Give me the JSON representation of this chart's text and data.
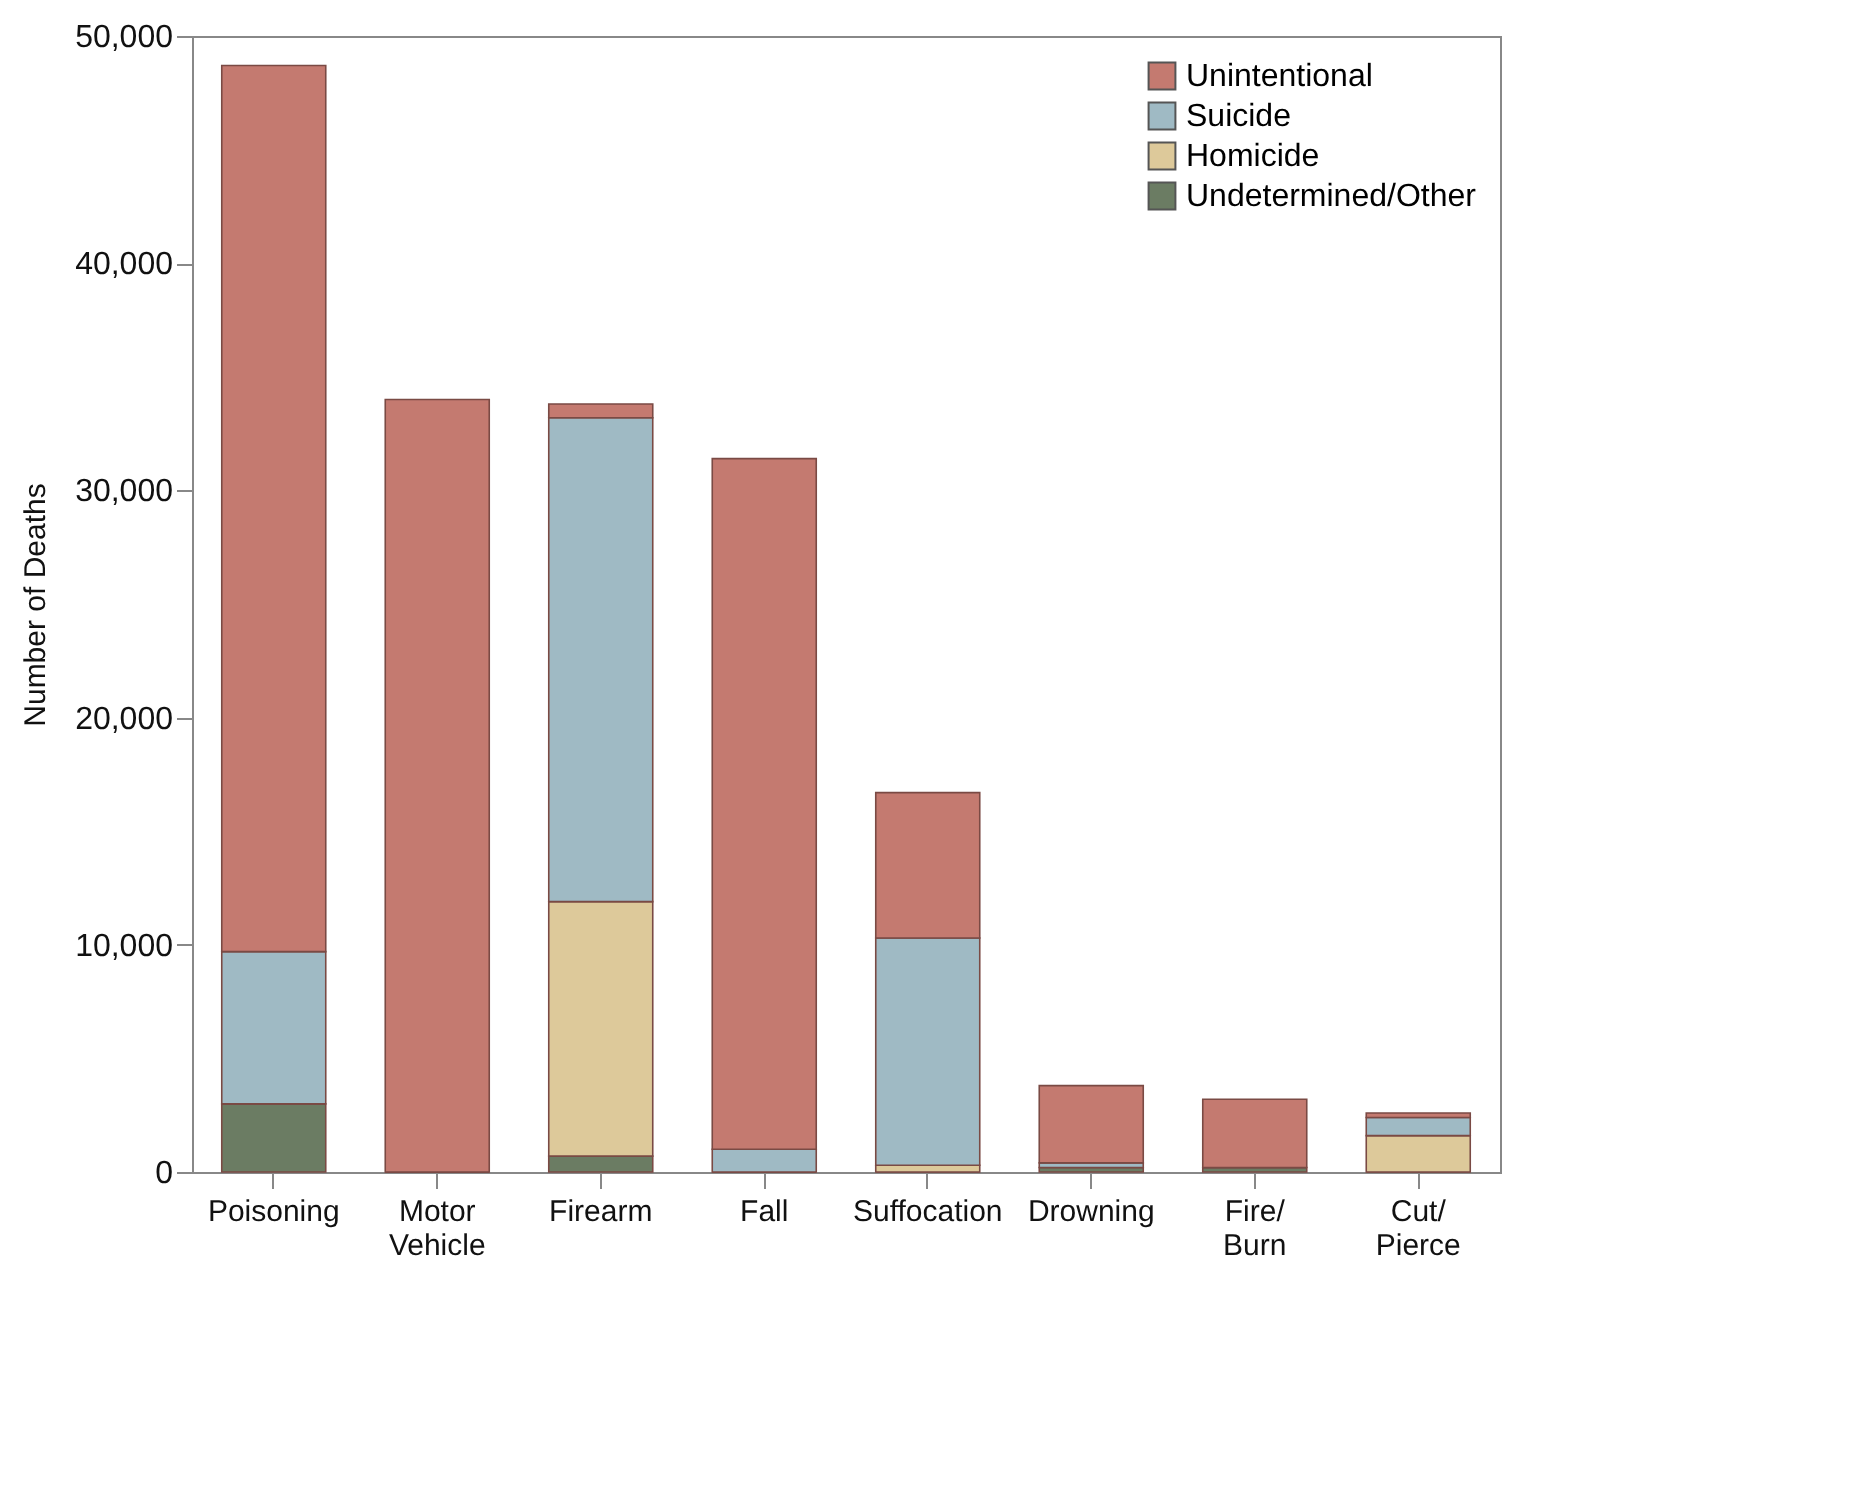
{
  "chart_data": {
    "type": "bar",
    "stacked": true,
    "ylabel": "Number of Deaths",
    "categories": [
      "Poisoning",
      "Motor\nVehicle",
      "Firearm",
      "Fall",
      "Suffocation",
      "Drowning",
      "Fire/\nBurn",
      "Cut/\nPierce"
    ],
    "series": [
      {
        "name": "Undetermined/Other",
        "color": "#6b7c63",
        "values": [
          3000,
          0,
          700,
          0,
          0,
          200,
          200,
          0
        ]
      },
      {
        "name": "Homicide",
        "color": "#ddc99a",
        "values": [
          0,
          0,
          11200,
          0,
          300,
          0,
          0,
          1600
        ]
      },
      {
        "name": "Suicide",
        "color": "#9fbac4",
        "values": [
          6700,
          0,
          21300,
          1000,
          10000,
          200,
          0,
          800
        ]
      },
      {
        "name": "Unintentional",
        "color": "#c47a70",
        "values": [
          39000,
          34000,
          600,
          30400,
          6400,
          3400,
          3000,
          200
        ]
      }
    ],
    "ylim": [
      0,
      50000
    ],
    "yticks": [
      0,
      {
        "value": 10000,
        "label": "10,000"
      },
      {
        "value": 20000,
        "label": "20,000"
      },
      {
        "value": 30000,
        "label": "30,000"
      },
      {
        "value": 40000,
        "label": "40,000"
      },
      {
        "value": 50000,
        "label": "50,000"
      }
    ],
    "grid": false,
    "legend": "top right"
  }
}
